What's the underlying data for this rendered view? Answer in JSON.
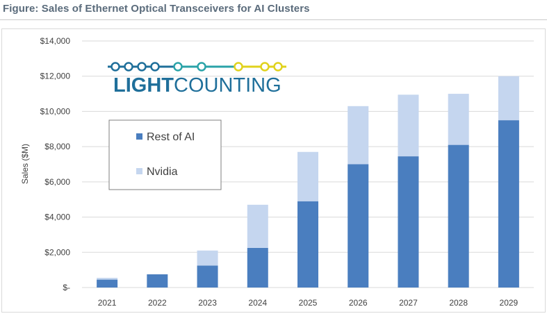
{
  "figure": {
    "title": "Figure: Sales of Ethernet Optical Transceivers for AI Clusters"
  },
  "logo": {
    "text_light": "LIGHT",
    "text_counting": "COUNTING"
  },
  "colors": {
    "rest_of_ai": "#4a7ebf",
    "nvidia": "#c5d6ef",
    "grid": "#d9d9d9",
    "logo_blue": "#1f6f9a",
    "logo_teal": "#2aa3a8",
    "logo_yellow": "#e0d21c"
  },
  "chart_data": {
    "type": "bar",
    "stacked": true,
    "categories": [
      "2021",
      "2022",
      "2023",
      "2024",
      "2025",
      "2026",
      "2027",
      "2028",
      "2029"
    ],
    "series": [
      {
        "name": "Rest of AI",
        "values": [
          450,
          750,
          1250,
          2250,
          4900,
          7000,
          7450,
          8100,
          9500
        ]
      },
      {
        "name": "Nvidia",
        "values": [
          100,
          0,
          850,
          2450,
          2800,
          3300,
          3500,
          2900,
          2500
        ]
      }
    ],
    "title": "",
    "xlabel": "",
    "ylabel": "Sales ($M)",
    "ylim": [
      0,
      14000
    ],
    "yticks": [
      0,
      2000,
      4000,
      6000,
      8000,
      10000,
      12000,
      14000
    ],
    "ytick_labels": [
      "$-",
      "$2,000",
      "$4,000",
      "$6,000",
      "$8,000",
      "$10,000",
      "$12,000",
      "$14,000"
    ],
    "grid": true,
    "legend_placement": "top-left",
    "legend_order": [
      "Rest of AI",
      "Nvidia"
    ]
  }
}
